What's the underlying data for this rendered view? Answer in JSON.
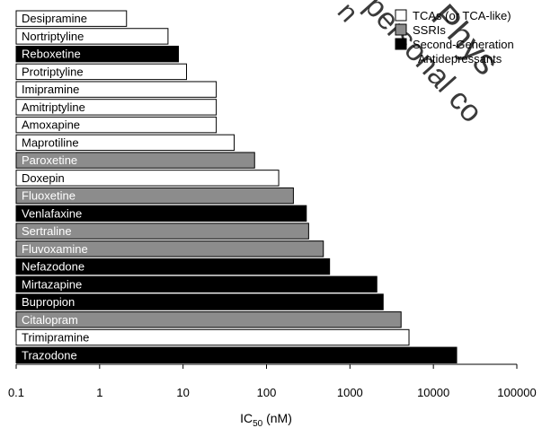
{
  "chart_data": {
    "type": "bar",
    "orientation": "horizontal",
    "x_scale": "log",
    "xlim": [
      0.1,
      100000
    ],
    "x_ticks": [
      "0.1",
      "1",
      "10",
      "100",
      "1000",
      "10000",
      "100000"
    ],
    "x_tick_values": [
      0.1,
      1,
      10,
      100,
      1000,
      10000,
      100000
    ],
    "xlabel": "IC",
    "xlabel_sub": "50",
    "xlabel_unit": " (nM)",
    "grid": false,
    "legend_position": "top-right",
    "legend": [
      {
        "class": "tca",
        "label": "TCAs (or TCA-like)",
        "color": "#ffffff"
      },
      {
        "class": "ssri",
        "label": "SSRIs",
        "color": "#8c8c8c"
      },
      {
        "class": "sga",
        "label": "Second-Generation",
        "label2": "Antidepressants",
        "color": "#000000"
      }
    ],
    "categories": [
      "Desipramine",
      "Nortriptyline",
      "Reboxetine",
      "Protriptyline",
      "Imipramine",
      "Amitriptyline",
      "Amoxapine",
      "Maprotiline",
      "Paroxetine",
      "Doxepin",
      "Fluoxetine",
      "Venlafaxine",
      "Sertraline",
      "Fluvoxamine",
      "Nefazodone",
      "Mirtazapine",
      "Bupropion",
      "Citalopram",
      "Trimipramine",
      "Trazodone"
    ],
    "values": [
      2.1,
      6.6,
      8.8,
      11,
      25,
      25,
      25,
      41,
      72,
      140,
      210,
      300,
      320,
      480,
      570,
      2100,
      2500,
      4100,
      5100,
      19000
    ],
    "classes": [
      "tca",
      "tca",
      "sga",
      "tca",
      "tca",
      "tca",
      "tca",
      "tca",
      "ssri",
      "tca",
      "ssri",
      "sga",
      "ssri",
      "ssri",
      "sga",
      "sga",
      "sga",
      "ssri",
      "tca",
      "sga"
    ]
  },
  "colors": {
    "tca": "#ffffff",
    "ssri": "#8c8c8c",
    "sga": "#000000"
  },
  "watermark": {
    "line1": "Phys",
    "line2": "personal co",
    "line3": "n"
  }
}
